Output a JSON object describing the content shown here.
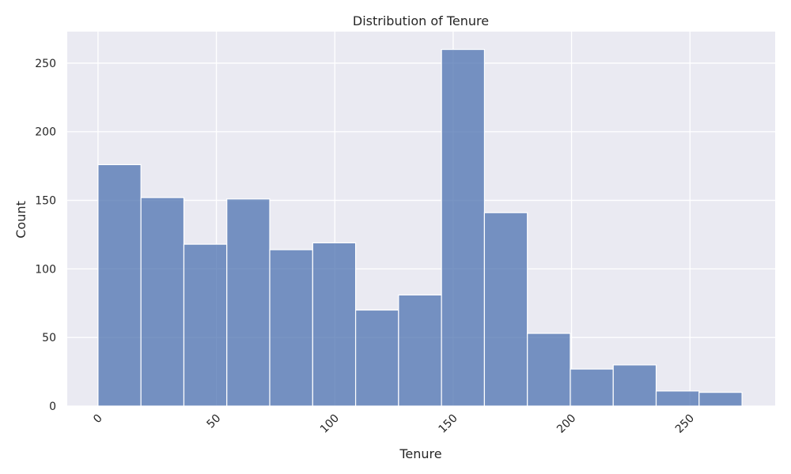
{
  "chart_data": {
    "type": "bar",
    "title": "Distribution of Tenure",
    "xlabel": "Tenure",
    "ylabel": "Count",
    "xlim": [
      -13.0,
      286.0
    ],
    "ylim": [
      0,
      273
    ],
    "xticks": [
      0,
      50,
      100,
      150,
      200,
      250
    ],
    "yticks": [
      0,
      50,
      100,
      150,
      200,
      250
    ],
    "grid": true,
    "bins": [
      {
        "x0": 0.0,
        "x1": 18.13,
        "count": 176
      },
      {
        "x0": 18.13,
        "x1": 36.27,
        "count": 152
      },
      {
        "x0": 36.27,
        "x1": 54.4,
        "count": 118
      },
      {
        "x0": 54.4,
        "x1": 72.53,
        "count": 151
      },
      {
        "x0": 72.53,
        "x1": 90.67,
        "count": 114
      },
      {
        "x0": 90.67,
        "x1": 108.8,
        "count": 119
      },
      {
        "x0": 108.8,
        "x1": 126.93,
        "count": 70
      },
      {
        "x0": 126.93,
        "x1": 145.07,
        "count": 81
      },
      {
        "x0": 145.07,
        "x1": 163.2,
        "count": 260
      },
      {
        "x0": 163.2,
        "x1": 181.33,
        "count": 141
      },
      {
        "x0": 181.33,
        "x1": 199.47,
        "count": 53
      },
      {
        "x0": 199.47,
        "x1": 217.6,
        "count": 27
      },
      {
        "x0": 217.6,
        "x1": 235.73,
        "count": 30
      },
      {
        "x0": 235.73,
        "x1": 253.87,
        "count": 11
      },
      {
        "x0": 253.87,
        "x1": 272.0,
        "count": 10
      }
    ]
  },
  "colors": {
    "bar_fill": "#4c72b0",
    "plot_background": "#eaeaf2",
    "grid": "#ffffff",
    "text": "#262626"
  }
}
